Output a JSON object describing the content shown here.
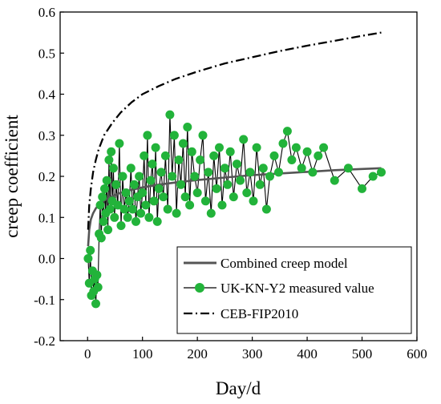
{
  "chart_data": {
    "type": "line",
    "title": "",
    "xlabel": "Day/d",
    "ylabel": "creep coefficient",
    "xlim": [
      -50,
      600
    ],
    "ylim": [
      -0.2,
      0.6
    ],
    "xticks": [
      0,
      100,
      200,
      300,
      400,
      500,
      600
    ],
    "xtick_labels": [
      "0",
      "100",
      "200",
      "300",
      "400",
      "500",
      "600"
    ],
    "yticks": [
      -0.2,
      -0.1,
      0.0,
      0.1,
      0.2,
      0.3,
      0.4,
      0.5,
      0.6
    ],
    "ytick_labels": [
      "-0.2",
      "-0.1",
      "0.0",
      "0.1",
      "0.2",
      "0.3",
      "0.4",
      "0.5",
      "0.6"
    ],
    "grid": false,
    "legend_position": "bottom-right",
    "legend": [
      {
        "label": "Combined creep model",
        "style": "solid",
        "color": "#555555"
      },
      {
        "label": "UK-KN-Y2 measured value",
        "style": "line-marker",
        "color": "#000000",
        "marker_color": "#22b33a"
      },
      {
        "label": "CEB-FIP2010",
        "style": "dashdot",
        "color": "#000000"
      }
    ],
    "series": [
      {
        "name": "Combined creep model",
        "color": "#555555",
        "style": "solid",
        "x": [
          1,
          3,
          6,
          10,
          15,
          20,
          30,
          45,
          60,
          80,
          100,
          130,
          160,
          200,
          250,
          300,
          350,
          400,
          450,
          500,
          535
        ],
        "y": [
          0.03,
          0.07,
          0.095,
          0.11,
          0.122,
          0.13,
          0.141,
          0.152,
          0.16,
          0.167,
          0.173,
          0.18,
          0.185,
          0.191,
          0.197,
          0.203,
          0.207,
          0.211,
          0.215,
          0.218,
          0.22
        ]
      },
      {
        "name": "CEB-FIP2010",
        "color": "#000000",
        "style": "dashdot",
        "x": [
          1,
          3,
          6,
          10,
          15,
          20,
          30,
          45,
          60,
          80,
          100,
          130,
          160,
          200,
          250,
          300,
          350,
          400,
          450,
          500,
          535
        ],
        "y": [
          0.07,
          0.13,
          0.17,
          0.21,
          0.24,
          0.265,
          0.3,
          0.33,
          0.355,
          0.38,
          0.4,
          0.42,
          0.437,
          0.455,
          0.475,
          0.49,
          0.505,
          0.518,
          0.53,
          0.542,
          0.55
        ]
      },
      {
        "name": "UK-KN-Y2 measured value",
        "color": "#000000",
        "marker_color": "#22b33a",
        "style": "line-marker",
        "x": [
          1,
          3,
          5,
          7,
          9,
          11,
          13,
          15,
          17,
          19,
          21,
          23,
          25,
          27,
          29,
          31,
          33,
          35,
          37,
          39,
          41,
          43,
          45,
          47,
          49,
          52,
          55,
          58,
          61,
          64,
          67,
          70,
          73,
          76,
          79,
          82,
          85,
          88,
          91,
          94,
          97,
          100,
          103,
          106,
          109,
          112,
          115,
          118,
          121,
          124,
          127,
          130,
          134,
          138,
          142,
          146,
          150,
          154,
          158,
          162,
          166,
          170,
          174,
          178,
          182,
          186,
          190,
          195,
          200,
          205,
          210,
          215,
          220,
          225,
          230,
          235,
          240,
          245,
          250,
          255,
          260,
          266,
          272,
          278,
          284,
          290,
          296,
          302,
          308,
          314,
          320,
          326,
          332,
          340,
          348,
          356,
          364,
          372,
          380,
          390,
          400,
          410,
          420,
          430,
          450,
          475,
          500,
          520,
          535
        ],
        "y": [
          0.0,
          -0.06,
          0.02,
          -0.09,
          -0.03,
          -0.08,
          -0.05,
          -0.11,
          -0.04,
          -0.07,
          0.06,
          0.13,
          0.05,
          0.15,
          0.09,
          0.17,
          0.11,
          0.19,
          0.07,
          0.24,
          0.12,
          0.26,
          0.14,
          0.22,
          0.1,
          0.18,
          0.13,
          0.28,
          0.08,
          0.2,
          0.12,
          0.16,
          0.1,
          0.14,
          0.22,
          0.12,
          0.18,
          0.09,
          0.15,
          0.2,
          0.11,
          0.16,
          0.25,
          0.13,
          0.3,
          0.1,
          0.19,
          0.23,
          0.14,
          0.27,
          0.09,
          0.17,
          0.21,
          0.15,
          0.25,
          0.12,
          0.35,
          0.2,
          0.3,
          0.11,
          0.24,
          0.18,
          0.28,
          0.15,
          0.32,
          0.13,
          0.26,
          0.2,
          0.16,
          0.24,
          0.3,
          0.14,
          0.21,
          0.11,
          0.25,
          0.17,
          0.27,
          0.13,
          0.22,
          0.18,
          0.26,
          0.15,
          0.23,
          0.19,
          0.29,
          0.16,
          0.21,
          0.14,
          0.27,
          0.18,
          0.22,
          0.12,
          0.2,
          0.25,
          0.21,
          0.28,
          0.31,
          0.24,
          0.27,
          0.22,
          0.26,
          0.21,
          0.25,
          0.27,
          0.19,
          0.22,
          0.17,
          0.2,
          0.21
        ]
      }
    ]
  }
}
